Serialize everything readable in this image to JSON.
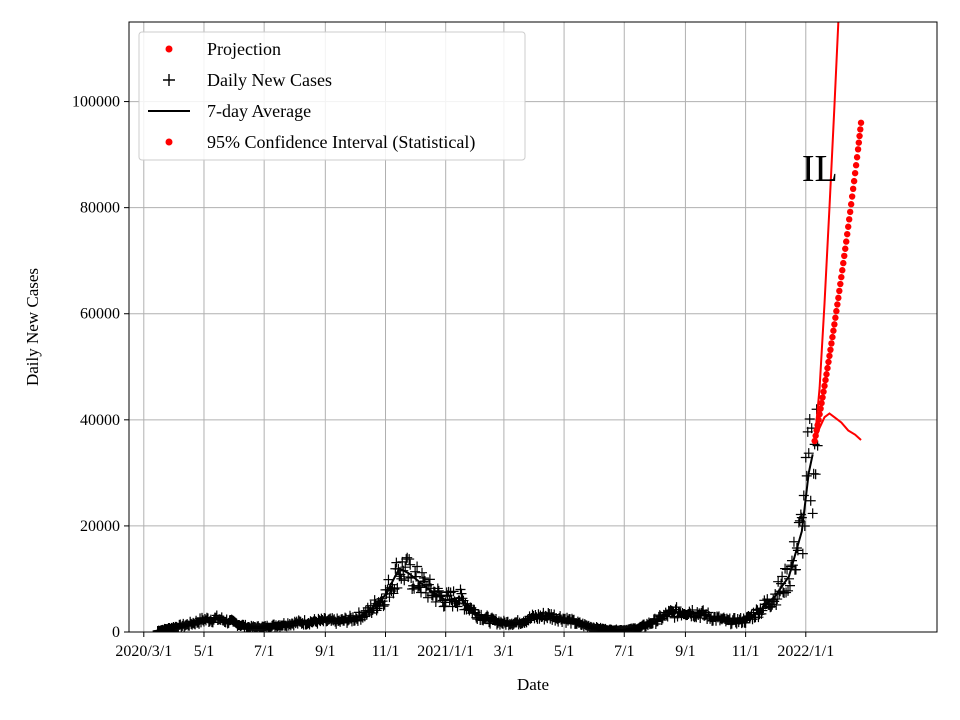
{
  "chart_data": {
    "type": "line",
    "annotation": "IL",
    "xlabel": "Date",
    "ylabel": "Daily New Cases",
    "xlim": [
      "2020-02-15",
      "2022-05-14"
    ],
    "ylim": [
      0,
      115000
    ],
    "grid": true,
    "legend_position": "top-left",
    "x_ticks": [
      {
        "date": "2020-03-01",
        "label": "2020/3/1"
      },
      {
        "date": "2020-05-01",
        "label": "5/1"
      },
      {
        "date": "2020-07-01",
        "label": "7/1"
      },
      {
        "date": "2020-09-01",
        "label": "9/1"
      },
      {
        "date": "2020-11-01",
        "label": "11/1"
      },
      {
        "date": "2021-01-01",
        "label": "2021/1/1"
      },
      {
        "date": "2021-03-01",
        "label": "3/1"
      },
      {
        "date": "2021-05-01",
        "label": "5/1"
      },
      {
        "date": "2021-07-01",
        "label": "7/1"
      },
      {
        "date": "2021-09-01",
        "label": "9/1"
      },
      {
        "date": "2021-11-01",
        "label": "11/1"
      },
      {
        "date": "2022-01-01",
        "label": "2022/1/1"
      }
    ],
    "y_ticks": [
      {
        "value": 0,
        "label": "0"
      },
      {
        "value": 20000,
        "label": "20000"
      },
      {
        "value": 40000,
        "label": "40000"
      },
      {
        "value": 60000,
        "label": "60000"
      },
      {
        "value": 80000,
        "label": "80000"
      },
      {
        "value": 100000,
        "label": "100000"
      }
    ],
    "legend": [
      {
        "label": "Projection",
        "marker": "dot",
        "color": "#ff0000"
      },
      {
        "label": "Daily New Cases",
        "marker": "plus",
        "color": "#000000"
      },
      {
        "label": "7-day Average",
        "marker": "line",
        "color": "#000000"
      },
      {
        "label": "95% Confidence Interval (Statistical)",
        "marker": "dot",
        "color": "#ff0000"
      }
    ],
    "series": [
      {
        "name": "7-day Average",
        "color": "#000000",
        "points": [
          [
            "2020-03-15",
            200
          ],
          [
            "2020-04-01",
            900
          ],
          [
            "2020-04-15",
            1400
          ],
          [
            "2020-05-01",
            2300
          ],
          [
            "2020-05-15",
            2500
          ],
          [
            "2020-06-01",
            1700
          ],
          [
            "2020-06-15",
            900
          ],
          [
            "2020-07-01",
            900
          ],
          [
            "2020-07-15",
            1300
          ],
          [
            "2020-08-01",
            1700
          ],
          [
            "2020-08-15",
            1900
          ],
          [
            "2020-09-01",
            2100
          ],
          [
            "2020-09-15",
            2000
          ],
          [
            "2020-10-01",
            2600
          ],
          [
            "2020-10-15",
            3800
          ],
          [
            "2020-11-01",
            7000
          ],
          [
            "2020-11-15",
            12000
          ],
          [
            "2020-11-25",
            11000
          ],
          [
            "2020-12-05",
            9500
          ],
          [
            "2020-12-15",
            8000
          ],
          [
            "2021-01-01",
            6000
          ],
          [
            "2021-01-15",
            6500
          ],
          [
            "2021-02-01",
            3500
          ],
          [
            "2021-02-15",
            2200
          ],
          [
            "2021-03-01",
            1700
          ],
          [
            "2021-03-15",
            1800
          ],
          [
            "2021-04-01",
            2800
          ],
          [
            "2021-04-15",
            3100
          ],
          [
            "2021-05-01",
            2500
          ],
          [
            "2021-05-15",
            1600
          ],
          [
            "2021-06-01",
            800
          ],
          [
            "2021-06-15",
            400
          ],
          [
            "2021-07-01",
            350
          ],
          [
            "2021-07-15",
            700
          ],
          [
            "2021-08-01",
            2000
          ],
          [
            "2021-08-15",
            3400
          ],
          [
            "2021-09-01",
            4000
          ],
          [
            "2021-09-15",
            3500
          ],
          [
            "2021-10-01",
            2600
          ],
          [
            "2021-10-15",
            2000
          ],
          [
            "2021-11-01",
            2200
          ],
          [
            "2021-11-15",
            4000
          ],
          [
            "2021-12-01",
            6800
          ],
          [
            "2021-12-15",
            10500
          ],
          [
            "2021-12-28",
            19000
          ],
          [
            "2022-01-04",
            30000
          ],
          [
            "2022-01-08",
            33500
          ]
        ]
      },
      {
        "name": "Projection",
        "color": "#ff0000",
        "points": [
          [
            "2022-01-10",
            36000
          ],
          [
            "2022-01-14",
            40000
          ],
          [
            "2022-01-18",
            44200
          ],
          [
            "2022-01-22",
            48600
          ],
          [
            "2022-01-26",
            53200
          ],
          [
            "2022-01-30",
            58000
          ],
          [
            "2022-02-03",
            63000
          ],
          [
            "2022-02-07",
            68200
          ],
          [
            "2022-02-11",
            73600
          ],
          [
            "2022-02-15",
            79200
          ],
          [
            "2022-02-19",
            85000
          ],
          [
            "2022-02-23",
            91000
          ],
          [
            "2022-02-26",
            96000
          ]
        ]
      },
      {
        "name": "95% Confidence Interval (Statistical)",
        "color": "#ff0000",
        "upper": [
          [
            "2022-01-10",
            36000
          ],
          [
            "2022-01-15",
            46000
          ],
          [
            "2022-01-20",
            62000
          ],
          [
            "2022-01-25",
            80000
          ],
          [
            "2022-01-30",
            99000
          ],
          [
            "2022-02-03",
            115000
          ]
        ],
        "lower": [
          [
            "2022-01-10",
            36000
          ],
          [
            "2022-01-15",
            38500
          ],
          [
            "2022-01-20",
            40500
          ],
          [
            "2022-01-25",
            41200
          ],
          [
            "2022-01-30",
            40500
          ],
          [
            "2022-02-06",
            39500
          ],
          [
            "2022-02-13",
            38000
          ],
          [
            "2022-02-20",
            37200
          ],
          [
            "2022-02-26",
            36200
          ]
        ]
      }
    ]
  }
}
